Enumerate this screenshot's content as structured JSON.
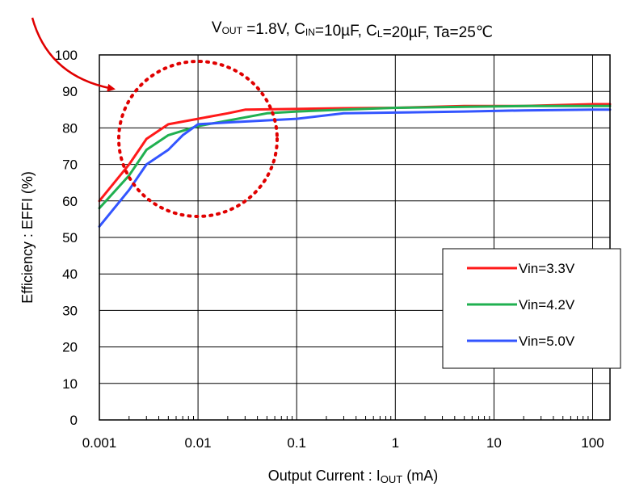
{
  "chart_data": {
    "type": "line",
    "title": {
      "parts": [
        {
          "text": "V",
          "sub": "OUT"
        },
        {
          "text": " =1.8V, C",
          "sub": "IN"
        },
        {
          "text": "=10µF, C",
          "sub": "L"
        },
        {
          "text": "=20µF, Ta=25℃",
          "sub": ""
        }
      ]
    },
    "xlabel": {
      "main": "Output Current : I",
      "sub": "OUT",
      "unit": " (mA)"
    },
    "ylabel": "Efficiency : EFFI (%)",
    "xscale": "log",
    "xlim": [
      0.001,
      150
    ],
    "ylim": [
      0,
      100
    ],
    "x_ticks": [
      {
        "value": 0.001,
        "label": "0.001"
      },
      {
        "value": 0.01,
        "label": "0.01"
      },
      {
        "value": 0.1,
        "label": "0.1"
      },
      {
        "value": 1,
        "label": "1"
      },
      {
        "value": 10,
        "label": "10"
      },
      {
        "value": 100,
        "label": "100"
      }
    ],
    "y_ticks": [
      0,
      10,
      20,
      30,
      40,
      50,
      60,
      70,
      80,
      90,
      100
    ],
    "grid": true,
    "legend_position": "bottom-right",
    "series": [
      {
        "name": "Vin=3.3V",
        "color": "#ff1a1a",
        "points": [
          [
            0.001,
            60
          ],
          [
            0.002,
            70
          ],
          [
            0.003,
            77
          ],
          [
            0.005,
            81
          ],
          [
            0.01,
            82.5
          ],
          [
            0.02,
            84
          ],
          [
            0.03,
            85
          ],
          [
            0.1,
            85.2
          ],
          [
            0.3,
            85.4
          ],
          [
            1,
            85.5
          ],
          [
            5,
            86
          ],
          [
            20,
            86
          ],
          [
            100,
            86.5
          ],
          [
            150,
            86.5
          ]
        ]
      },
      {
        "name": "Vin=4.2V",
        "color": "#20b050",
        "points": [
          [
            0.001,
            58
          ],
          [
            0.002,
            67
          ],
          [
            0.003,
            74
          ],
          [
            0.005,
            78
          ],
          [
            0.01,
            80.5
          ],
          [
            0.02,
            82
          ],
          [
            0.05,
            84
          ],
          [
            0.1,
            84.5
          ],
          [
            0.3,
            85
          ],
          [
            1,
            85.5
          ],
          [
            5,
            85.8
          ],
          [
            20,
            86
          ],
          [
            100,
            86
          ],
          [
            150,
            86
          ]
        ]
      },
      {
        "name": "Vin=5.0V",
        "color": "#3355ff",
        "points": [
          [
            0.001,
            53
          ],
          [
            0.002,
            63
          ],
          [
            0.003,
            70
          ],
          [
            0.005,
            74
          ],
          [
            0.007,
            78
          ],
          [
            0.01,
            81
          ],
          [
            0.02,
            81.5
          ],
          [
            0.1,
            82.5
          ],
          [
            0.3,
            84
          ],
          [
            1,
            84.2
          ],
          [
            5,
            84.5
          ],
          [
            20,
            84.8
          ],
          [
            100,
            85
          ],
          [
            150,
            85
          ]
        ]
      }
    ]
  }
}
